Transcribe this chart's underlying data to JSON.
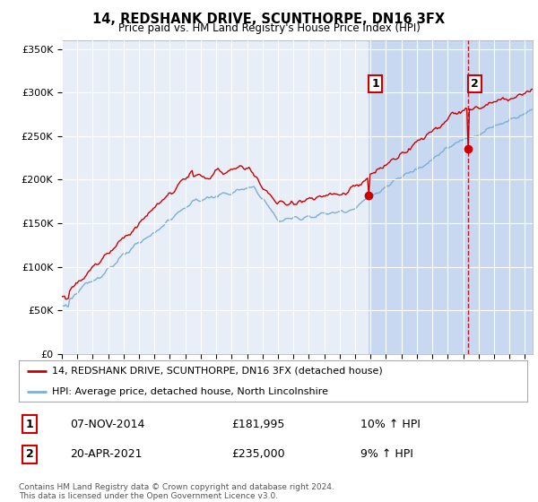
{
  "title": "14, REDSHANK DRIVE, SCUNTHORPE, DN16 3FX",
  "subtitle": "Price paid vs. HM Land Registry's House Price Index (HPI)",
  "ylabel_ticks": [
    "£0",
    "£50K",
    "£100K",
    "£150K",
    "£200K",
    "£250K",
    "£300K",
    "£350K"
  ],
  "ylim": [
    0,
    360000
  ],
  "xlim_start": 1995.0,
  "xlim_end": 2025.5,
  "legend_line1": "14, REDSHANK DRIVE, SCUNTHORPE, DN16 3FX (detached house)",
  "legend_line2": "HPI: Average price, detached house, North Lincolnshire",
  "transaction1_date": "07-NOV-2014",
  "transaction1_price": "£181,995",
  "transaction1_hpi": "10% ↑ HPI",
  "transaction1_x": 2014.85,
  "transaction1_y": 181995,
  "transaction2_date": "20-APR-2021",
  "transaction2_price": "£235,000",
  "transaction2_hpi": "9% ↑ HPI",
  "transaction2_x": 2021.3,
  "transaction2_y": 235000,
  "footer": "Contains HM Land Registry data © Crown copyright and database right 2024.\nThis data is licensed under the Open Government Licence v3.0.",
  "color_red": "#cc0000",
  "color_blue": "#7bafd4",
  "color_vline": "#cc0000",
  "background_color": "#ffffff",
  "plot_bg_color": "#e8eef8",
  "grid_color": "#ffffff",
  "shade_color": "#c8d8f0"
}
